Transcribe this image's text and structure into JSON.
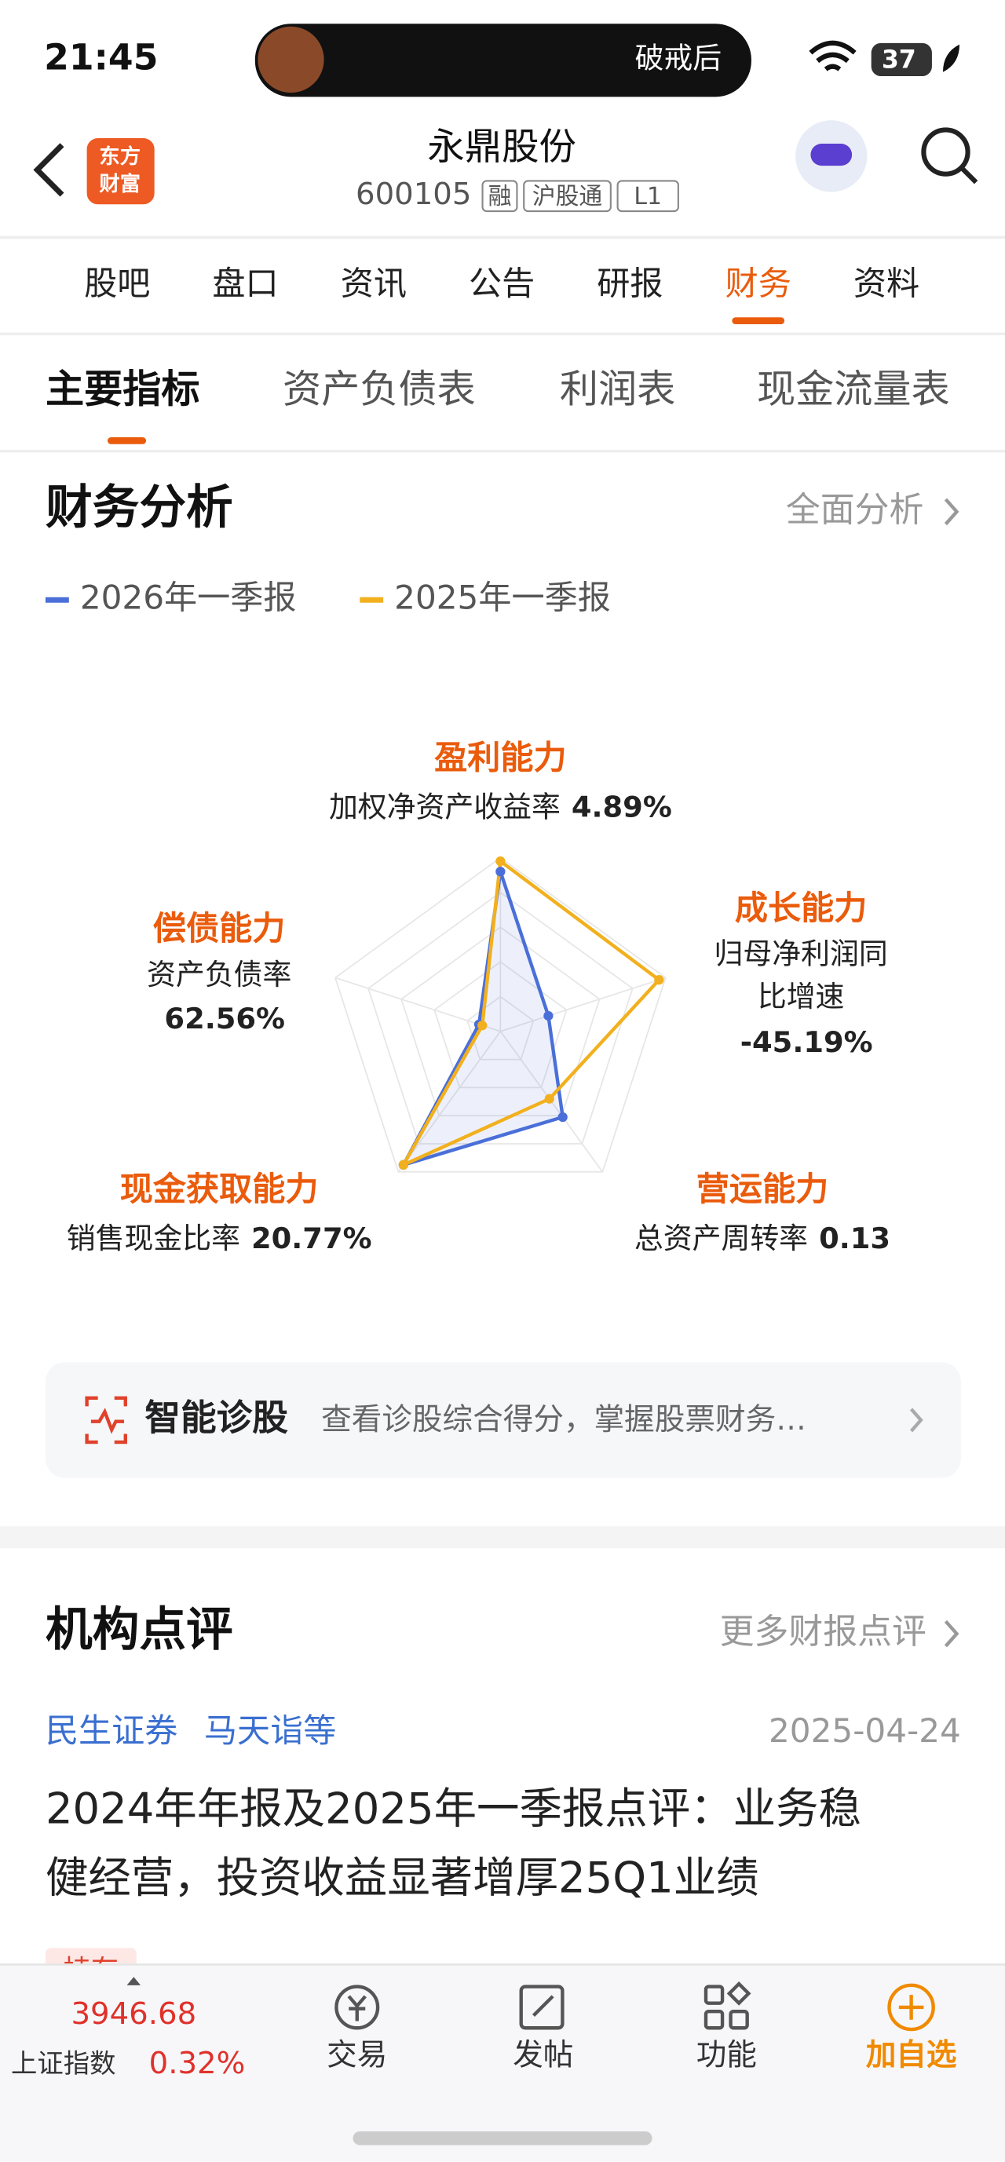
{
  "status_bar": {
    "time": "21:45",
    "notification": "破戒后",
    "battery": "37"
  },
  "header": {
    "logo": [
      "东方",
      "财富"
    ],
    "title": "永鼎股份",
    "code": "600105",
    "tags": [
      "融",
      "沪股通",
      "L1"
    ]
  },
  "tabs": {
    "items": [
      "股吧",
      "盘口",
      "资讯",
      "公告",
      "研报",
      "财务",
      "资料"
    ],
    "active": 5
  },
  "sub_tabs": {
    "items": [
      "主要指标",
      "资产负债表",
      "利润表",
      "现金流量表"
    ],
    "active": 0
  },
  "analysis": {
    "title": "财务分析",
    "link": "全面分析"
  },
  "chart_data": {
    "type": "radar",
    "series": [
      {
        "name": "2026年一季报",
        "color": "#4a6fd8",
        "values": [
          0.92,
          0.29,
          0.61,
          0.95,
          0.13
        ]
      },
      {
        "name": "2025年一季报",
        "color": "#f2b01e",
        "values": [
          0.98,
          0.96,
          0.48,
          0.95,
          0.11
        ]
      }
    ],
    "axes": [
      {
        "title": "盈利能力",
        "label": [
          "加权净资产收益率"
        ],
        "value": "4.89%"
      },
      {
        "title": "成长能力",
        "label": [
          "归母净利润同",
          "比增速"
        ],
        "value": "-45.19%"
      },
      {
        "title": "营运能力",
        "label": [
          "总资产周转率"
        ],
        "value": "0.13"
      },
      {
        "title": "现金获取能力",
        "label": [
          "销售现金比率"
        ],
        "value": "20.77%"
      },
      {
        "title": "偿债能力",
        "label": [
          "资产负债率"
        ],
        "value": "62.56%"
      }
    ],
    "rlim": [
      0,
      1
    ],
    "rticks": [
      0.2,
      0.4,
      0.6,
      0.8,
      1
    ],
    "grid": true
  },
  "diagnosis": {
    "title": "智能诊股",
    "text": "查看诊股综合得分，掌握股票财务…"
  },
  "reviews": {
    "title": "机构点评",
    "link": "更多财报点评",
    "items": [
      {
        "broker": "民生证券",
        "analyst": "马天诣等",
        "date": "2025-04-24",
        "title": [
          "2024年年报及2025年一季报点评：业务稳",
          "健经营，投资收益显著增厚25Q1业绩"
        ],
        "tag": "持有"
      }
    ]
  },
  "bottom_bar": {
    "index_value": "3946.68",
    "index_name": "上证指数",
    "index_change": "0.32%",
    "actions": [
      "交易",
      "发帖",
      "功能",
      "加自选"
    ]
  }
}
